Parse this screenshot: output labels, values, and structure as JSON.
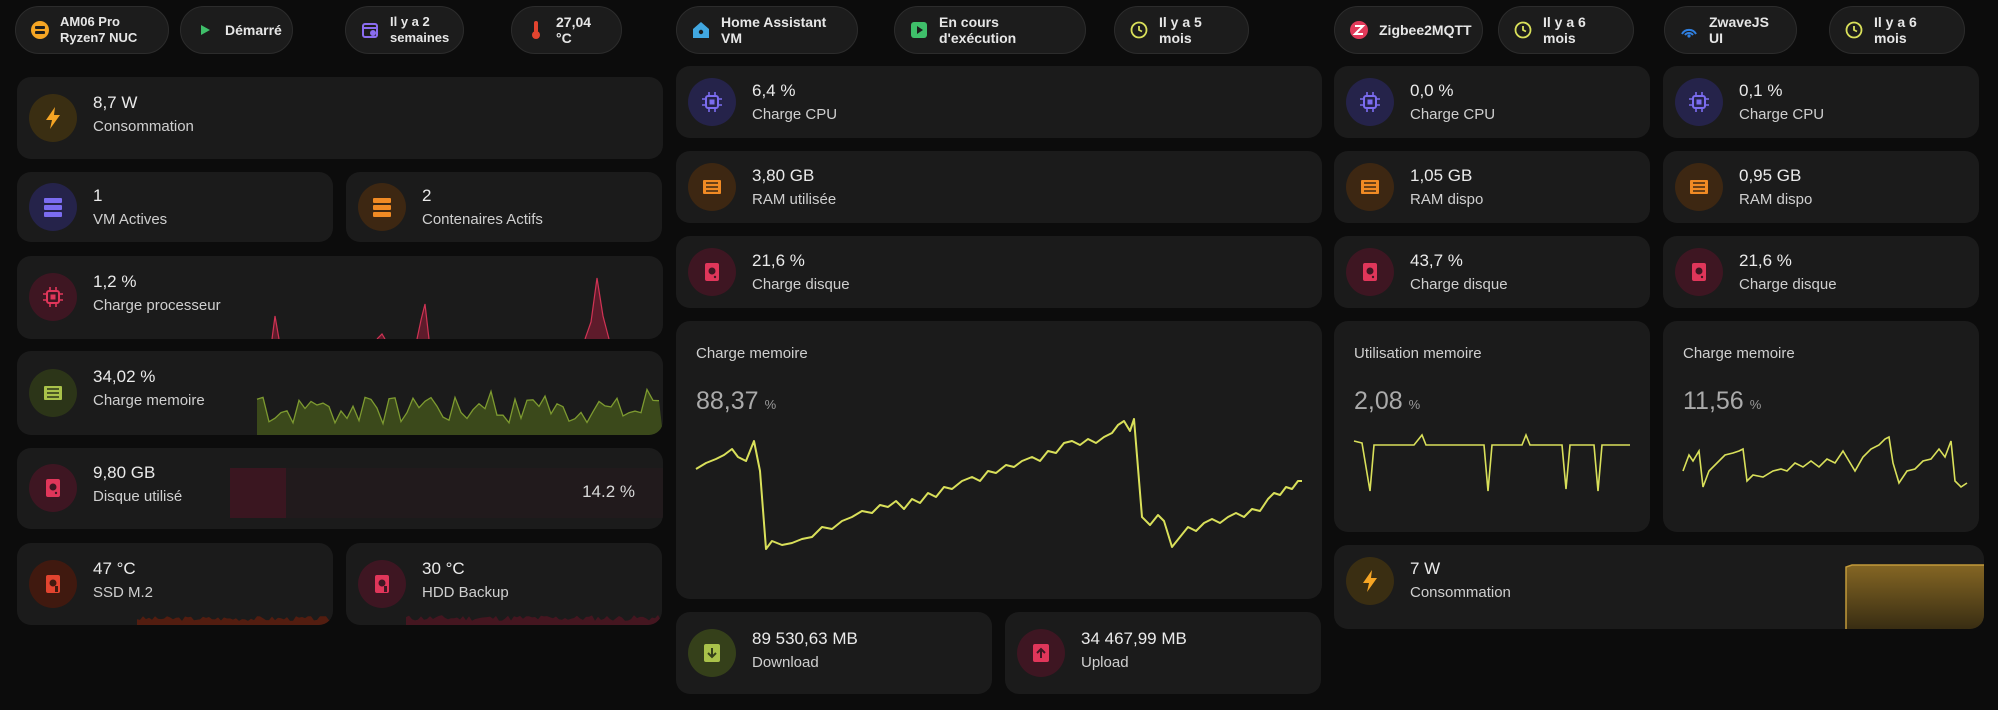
{
  "header": {
    "host_name": "AM06 Pro",
    "host_model": "Ryzen7 NUC",
    "host_status": "Démarré",
    "host_uptime_line1": "Il y a 2",
    "host_uptime_line2": "semaines",
    "host_temp": "27,04 °C",
    "vm_name": "Home Assistant VM",
    "vm_status": "En cours d'exécution",
    "vm_uptime": "Il y a 5 mois",
    "z2m_name": "Zigbee2MQTT",
    "z2m_uptime": "Il y a 6 mois",
    "zwave_name": "ZwaveJS UI",
    "zwave_uptime": "Il y a 6 mois"
  },
  "host": {
    "power": {
      "value": "8,7 W",
      "label": "Consommation"
    },
    "vms": {
      "value": "1",
      "label": "VM Actives"
    },
    "containers": {
      "value": "2",
      "label": "Contenaires Actifs"
    },
    "cpu": {
      "value": "1,2 %",
      "label": "Charge processeur"
    },
    "mem": {
      "value": "34,02 %",
      "label": "Charge memoire"
    },
    "disk": {
      "value": "9,80 GB",
      "label": "Disque utilisé",
      "bar_percent": "14.2 %"
    },
    "ssd": {
      "value": "47 °C",
      "label": "SSD M.2"
    },
    "hdd": {
      "value": "30 °C",
      "label": "HDD Backup"
    }
  },
  "vm": {
    "cpu": {
      "value": "6,4 %",
      "label": "Charge CPU"
    },
    "ram": {
      "value": "3,80 GB",
      "label": "RAM utilisée"
    },
    "disk": {
      "value": "21,6 %",
      "label": "Charge disque"
    },
    "memory_chart": {
      "title": "Charge memoire",
      "value": "88,37",
      "unit": "%"
    },
    "download": {
      "value": "89 530,63 MB",
      "label": "Download"
    },
    "upload": {
      "value": "34 467,99 MB",
      "label": "Upload"
    }
  },
  "z2m": {
    "cpu": {
      "value": "0,0 %",
      "label": "Charge CPU"
    },
    "ram": {
      "value": "1,05 GB",
      "label": "RAM dispo"
    },
    "disk": {
      "value": "43,7 %",
      "label": "Charge disque"
    },
    "memory_chart": {
      "title": "Utilisation memoire",
      "value": "2,08",
      "unit": "%"
    }
  },
  "zwave": {
    "cpu": {
      "value": "0,1 %",
      "label": "Charge CPU"
    },
    "ram": {
      "value": "0,95 GB",
      "label": "RAM dispo"
    },
    "disk": {
      "value": "21,6 %",
      "label": "Charge disque"
    },
    "memory_chart": {
      "title": "Charge memoire",
      "value": "11,56",
      "unit": "%"
    }
  },
  "addons_power": {
    "value": "7 W",
    "label": "Consommation"
  },
  "colors": {
    "accent_orange": "#f5a524",
    "cpu_purple": "#7b6cf0",
    "ram_orange": "#f08a24",
    "disk_red": "#e0365a",
    "mem_green": "#a9c24a",
    "line_yellow": "#d9e05a",
    "temp_red": "#e2442f"
  }
}
